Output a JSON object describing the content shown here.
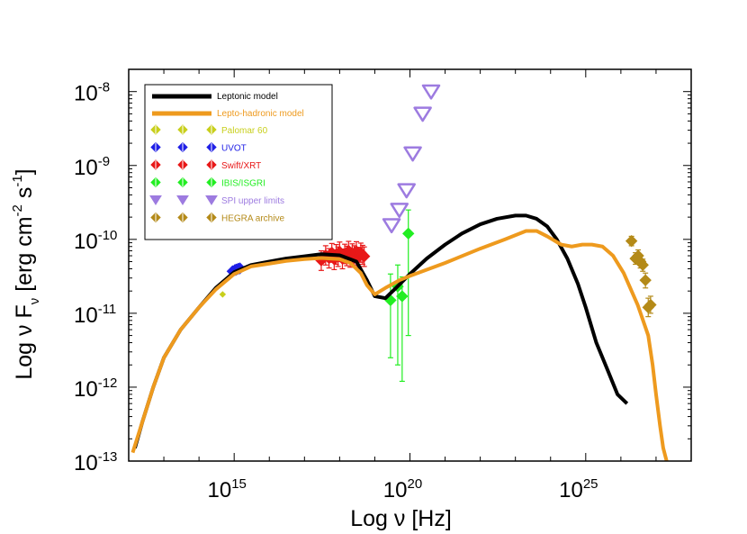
{
  "chart_data": {
    "type": "scatter",
    "log_x": true,
    "log_y": true,
    "xlim": [
      1000000000000.0,
      1e+28
    ],
    "ylim": [
      1e-13,
      2e-08
    ],
    "x_ticks": [
      {
        "value": 1000000000000000.0,
        "base": "10",
        "exp": "15"
      },
      {
        "value": 1e+20,
        "base": "10",
        "exp": "20"
      },
      {
        "value": 1e+25,
        "base": "10",
        "exp": "25"
      }
    ],
    "y_ticks": [
      {
        "value": 1e-08,
        "base": "10",
        "exp": "-8"
      },
      {
        "value": 1e-09,
        "base": "10",
        "exp": "-9"
      },
      {
        "value": 1e-10,
        "base": "10",
        "exp": "-10"
      },
      {
        "value": 1e-11,
        "base": "10",
        "exp": "-11"
      },
      {
        "value": 1e-12,
        "base": "10",
        "exp": "-12"
      },
      {
        "value": 1e-13,
        "base": "10",
        "exp": "-13"
      }
    ],
    "xlabel": "Log ν [Hz]",
    "ylabel": "Log ν F_ν [erg cm^-2 s^-1]",
    "legend_position": "top-left",
    "series": [
      {
        "name": "Leptonic model",
        "kind": "line",
        "color": "#000000",
        "x": [
          1500000000000.0,
          2500000000000.0,
          5000000000000.0,
          10000000000000.0,
          30000000000000.0,
          100000000000000.0,
          300000000000000.0,
          1000000000000000.0,
          3000000000000000.0,
          1e+16,
          3e+16,
          1e+17,
          3e+17,
          1e+18,
          3e+18,
          6e+18,
          1e+19,
          2e+19,
          4e+19,
          1e+20,
          3e+20,
          1e+21,
          3e+21,
          1e+22,
          3e+22,
          1e+23,
          2e+23,
          4e+23,
          8e+23,
          1.5e+24,
          3e+24,
          6e+24,
          1e+25,
          2e+25,
          4e+25,
          8e+25,
          1.5e+26
        ],
        "y": [
          1.5e-13,
          3.5e-13,
          1e-12,
          2.5e-12,
          6e-12,
          1.2e-11,
          2.2e-11,
          3.6e-11,
          4.5e-11,
          5e-11,
          5.5e-11,
          5.9e-11,
          6.3e-11,
          6.1e-11,
          5e-11,
          2.8e-11,
          1.7e-11,
          1.6e-11,
          2.2e-11,
          3.4e-11,
          5.5e-11,
          8.5e-11,
          1.2e-10,
          1.6e-10,
          1.9e-10,
          2.1e-10,
          2.1e-10,
          1.9e-10,
          1.5e-10,
          1e-10,
          5.5e-11,
          2.5e-11,
          1.2e-11,
          4e-12,
          1.8e-12,
          8e-13,
          6e-13
        ]
      },
      {
        "name": "Lepto-hadronic model",
        "kind": "line",
        "color": "#ee9a1e",
        "x": [
          1300000000000.0,
          2500000000000.0,
          5000000000000.0,
          10000000000000.0,
          30000000000000.0,
          100000000000000.0,
          300000000000000.0,
          1000000000000000.0,
          3000000000000000.0,
          1e+16,
          3e+16,
          1e+17,
          3e+17,
          1e+18,
          2e+18,
          4e+18,
          6e+18,
          1e+19,
          2e+19,
          5e+19,
          1e+20,
          1e+21,
          1e+22,
          5e+22,
          2e+23,
          4e+23,
          8e+23,
          2e+24,
          4e+24,
          8e+24,
          1.5e+25,
          3e+25,
          6e+25,
          1.2e+26,
          3e+26,
          6e+26,
          8e+26,
          1e+27,
          1.3e+27,
          1.6e+27,
          2e+27
        ],
        "y": [
          1.3e-13,
          3.5e-13,
          1e-12,
          2.5e-12,
          6e-12,
          1.2e-11,
          2.1e-11,
          3.4e-11,
          4.3e-11,
          4.7e-11,
          5.1e-11,
          5.4e-11,
          5.6e-11,
          5.4e-11,
          4.8e-11,
          3.5e-11,
          2.4e-11,
          1.8e-11,
          2.2e-11,
          2.8e-11,
          3.2e-11,
          4.8e-11,
          7.5e-11,
          1e-10,
          1.3e-10,
          1.3e-10,
          1.1e-10,
          8.5e-11,
          8e-11,
          8.5e-11,
          8.5e-11,
          8e-11,
          6e-11,
          3.5e-11,
          1.3e-11,
          5e-12,
          2e-12,
          8e-13,
          3e-13,
          1.5e-13,
          1e-13
        ]
      },
      {
        "name": "Palomar 60",
        "kind": "points",
        "marker": "diamond",
        "color": "#c8cf1c",
        "x": [
          470000000000000.0
        ],
        "y": [
          1.8e-11
        ]
      },
      {
        "name": "UVOT",
        "kind": "points",
        "marker": "diamond",
        "color": "#1f1fe6",
        "x": [
          900000000000000.0,
          1050000000000000.0,
          1150000000000000.0,
          1300000000000000.0,
          1450000000000000.0
        ],
        "y": [
          3.7e-11,
          3.85e-11,
          3.9e-11,
          4e-11,
          4.05e-11
        ]
      },
      {
        "name": "Swift/XRT",
        "kind": "points",
        "marker": "diamond",
        "color": "#e81818",
        "x": [
          3e+17,
          4e+17,
          5e+17,
          6e+17,
          7e+17,
          8e+17,
          9e+17,
          1e+18,
          1.2e+18,
          1.4e+18,
          1.6e+18,
          1.8e+18,
          2e+18,
          2.3e+18,
          2.6e+18,
          3e+18,
          3.5e+18,
          4e+18,
          4.5e+18,
          5e+18
        ],
        "y": [
          5.2e-11,
          6.1e-11,
          5.6e-11,
          6.6e-11,
          5.4e-11,
          6.3e-11,
          5.9e-11,
          6.8e-11,
          5.5e-11,
          6.4e-11,
          6e-11,
          7e-11,
          5.7e-11,
          6.5e-11,
          6.1e-11,
          6.9e-11,
          5.8e-11,
          6.6e-11,
          6.2e-11,
          5.9e-11
        ],
        "err_lo": [
          3.8e-11,
          4.5e-11,
          4.1e-11,
          4.9e-11,
          3.9e-11,
          4.6e-11,
          4.3e-11,
          5e-11,
          4e-11,
          4.7e-11,
          4.4e-11,
          5.2e-11,
          4.2e-11,
          4.8e-11,
          4.5e-11,
          5.1e-11,
          4.3e-11,
          4.9e-11,
          4.6e-11,
          4.3e-11
        ],
        "err_hi": [
          7e-11,
          8.2e-11,
          7.5e-11,
          8.8e-11,
          7.2e-11,
          8.5e-11,
          7.9e-11,
          9.2e-11,
          7.4e-11,
          8.6e-11,
          8.1e-11,
          9.4e-11,
          7.7e-11,
          8.7e-11,
          8.2e-11,
          9.3e-11,
          7.8e-11,
          8.9e-11,
          8.3e-11,
          7.9e-11
        ]
      },
      {
        "name": "IBIS/ISGRI",
        "kind": "points",
        "marker": "diamond",
        "color": "#22ee22",
        "x": [
          2.8e+19,
          4.5e+19,
          6e+19,
          9e+19
        ],
        "y": [
          1.5e-11,
          2.3e-11,
          1.7e-11,
          1.2e-10
        ],
        "err_lo": [
          2.5e-12,
          2e-12,
          1.2e-12,
          5e-12
        ],
        "err_hi": [
          3.4e-11,
          4.5e-11,
          3.1e-11,
          2.5e-10
        ]
      },
      {
        "name": "SPI upper limits",
        "kind": "points",
        "marker": "triangle-down",
        "color": "#9d7be0",
        "x": [
          3e+19,
          5e+19,
          8e+19,
          1.2e+20,
          2.3e+20,
          4e+20
        ],
        "y": [
          1.55e-10,
          2.5e-10,
          4.6e-10,
          1.45e-09,
          5e-09,
          1e-08
        ]
      },
      {
        "name": "HEGRA archive",
        "kind": "points",
        "marker": "diamond",
        "color": "#b48a18",
        "x": [
          2e+26,
          2.6e+26,
          3.1e+26,
          3.6e+26,
          4.2e+26,
          5e+26,
          6e+26,
          7e+26
        ],
        "y": [
          9.5e-11,
          5.5e-11,
          6e-11,
          5e-11,
          4.5e-11,
          2.8e-11,
          1.2e-11,
          1.3e-11
        ],
        "err_lo": [
          8.2e-11,
          4.6e-11,
          5e-11,
          4.1e-11,
          3.7e-11,
          2.2e-11,
          9e-12,
          1e-11
        ],
        "err_hi": [
          1.1e-10,
          6.6e-11,
          7.2e-11,
          6e-11,
          5.4e-11,
          3.5e-11,
          1.6e-11,
          1.7e-11
        ]
      }
    ]
  }
}
